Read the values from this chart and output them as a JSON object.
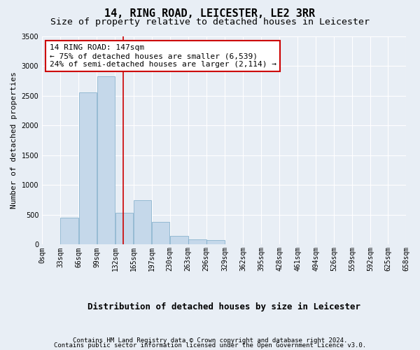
{
  "title": "14, RING ROAD, LEICESTER, LE2 3RR",
  "subtitle": "Size of property relative to detached houses in Leicester",
  "xlabel": "Distribution of detached houses by size in Leicester",
  "ylabel": "Number of detached properties",
  "footer_line1": "Contains HM Land Registry data © Crown copyright and database right 2024.",
  "footer_line2": "Contains public sector information licensed under the Open Government Licence v3.0.",
  "annotation_title": "14 RING ROAD: 147sqm",
  "annotation_line1": "← 75% of detached houses are smaller (6,539)",
  "annotation_line2": "24% of semi-detached houses are larger (2,114) →",
  "property_size": 147,
  "bin_edges": [
    0,
    33,
    66,
    99,
    132,
    165,
    198,
    231,
    264,
    297,
    330,
    363,
    396,
    429,
    462,
    495,
    528,
    561,
    594,
    625,
    658
  ],
  "bar_heights": [
    5,
    450,
    2550,
    2820,
    530,
    750,
    380,
    150,
    90,
    70,
    0,
    0,
    0,
    0,
    0,
    0,
    0,
    0,
    0,
    0
  ],
  "bar_color": "#c5d8ea",
  "bar_edge_color": "#7baac8",
  "vline_color": "#cc0000",
  "annotation_box_edge_color": "#cc0000",
  "annotation_box_fill": "#ffffff",
  "background_color": "#e8eef5",
  "plot_bg_color": "#e8eef5",
  "ylim": [
    0,
    3500
  ],
  "yticks": [
    0,
    500,
    1000,
    1500,
    2000,
    2500,
    3000,
    3500
  ],
  "xtick_labels": [
    "0sqm",
    "33sqm",
    "66sqm",
    "99sqm",
    "132sqm",
    "165sqm",
    "197sqm",
    "230sqm",
    "263sqm",
    "296sqm",
    "329sqm",
    "362sqm",
    "395sqm",
    "428sqm",
    "461sqm",
    "494sqm",
    "526sqm",
    "559sqm",
    "592sqm",
    "625sqm",
    "658sqm"
  ],
  "grid_color": "#ffffff",
  "title_fontsize": 11,
  "subtitle_fontsize": 9.5,
  "ylabel_fontsize": 8,
  "xlabel_fontsize": 9,
  "tick_fontsize": 7,
  "annotation_fontsize": 8,
  "footer_fontsize": 6.5
}
